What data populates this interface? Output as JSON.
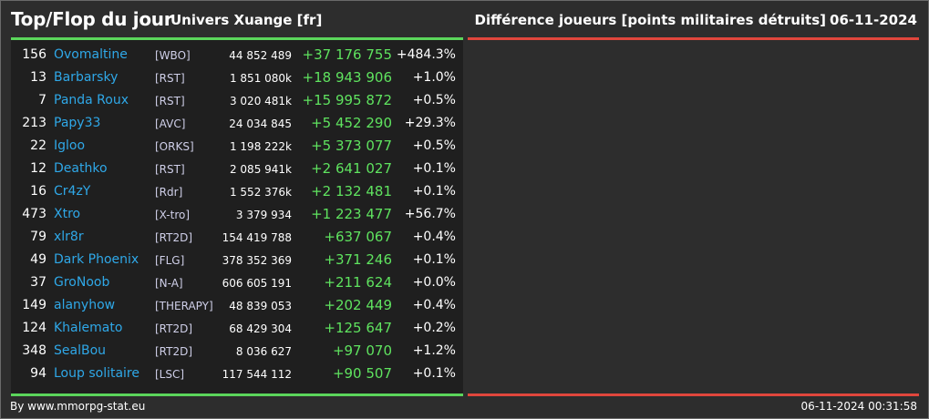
{
  "header": {
    "title": "Top/Flop du jour",
    "universe": "Univers Xuange [fr]",
    "metric": "Différence joueurs [points militaires détruits]",
    "date": "06-11-2024"
  },
  "colors": {
    "positive": "#5fe35f",
    "negative_bar": "#e0463c",
    "player_link": "#2fa8e8"
  },
  "rows": [
    {
      "rank": "156",
      "name": "Ovomaltine",
      "alliance": "[WBO]",
      "points": "44 852 489",
      "diff": "+37 176 755",
      "pct": "+484.3%"
    },
    {
      "rank": "13",
      "name": "Barbarsky",
      "alliance": "[RST]",
      "points": "1 851 080k",
      "diff": "+18 943 906",
      "pct": "+1.0%"
    },
    {
      "rank": "7",
      "name": "Panda Roux",
      "alliance": "[RST]",
      "points": "3 020 481k",
      "diff": "+15 995 872",
      "pct": "+0.5%"
    },
    {
      "rank": "213",
      "name": "Papy33",
      "alliance": "[AVC]",
      "points": "24 034 845",
      "diff": "+5 452 290",
      "pct": "+29.3%"
    },
    {
      "rank": "22",
      "name": "Igloo",
      "alliance": "[ORKS]",
      "points": "1 198 222k",
      "diff": "+5 373 077",
      "pct": "+0.5%"
    },
    {
      "rank": "12",
      "name": "Deathko",
      "alliance": "[RST]",
      "points": "2 085 941k",
      "diff": "+2 641 027",
      "pct": "+0.1%"
    },
    {
      "rank": "16",
      "name": "Cr4zY",
      "alliance": "[Rdr]",
      "points": "1 552 376k",
      "diff": "+2 132 481",
      "pct": "+0.1%"
    },
    {
      "rank": "473",
      "name": "Xtro",
      "alliance": "[X-tro]",
      "points": "3 379 934",
      "diff": "+1 223 477",
      "pct": "+56.7%"
    },
    {
      "rank": "79",
      "name": "xlr8r",
      "alliance": "[RT2D]",
      "points": "154 419 788",
      "diff": "+637 067",
      "pct": "+0.4%"
    },
    {
      "rank": "49",
      "name": "Dark Phoenix",
      "alliance": "[FLG]",
      "points": "378 352 369",
      "diff": "+371 246",
      "pct": "+0.1%"
    },
    {
      "rank": "37",
      "name": "GroNoob",
      "alliance": "[N-A]",
      "points": "606 605 191",
      "diff": "+211 624",
      "pct": "+0.0%"
    },
    {
      "rank": "149",
      "name": "alanyhow",
      "alliance": "[THERAPY]",
      "points": "48 839 053",
      "diff": "+202 449",
      "pct": "+0.4%"
    },
    {
      "rank": "124",
      "name": "Khalemato",
      "alliance": "[RT2D]",
      "points": "68 429 304",
      "diff": "+125 647",
      "pct": "+0.2%"
    },
    {
      "rank": "348",
      "name": "SealBou",
      "alliance": "[RT2D]",
      "points": "8 036 627",
      "diff": "+97 070",
      "pct": "+1.2%"
    },
    {
      "rank": "94",
      "name": "Loup solitaire",
      "alliance": "[LSC]",
      "points": "117 544 112",
      "diff": "+90 507",
      "pct": "+0.1%"
    }
  ],
  "footer": {
    "source": "By www.mmorpg-stat.eu",
    "timestamp": "06-11-2024 00:31:58"
  }
}
